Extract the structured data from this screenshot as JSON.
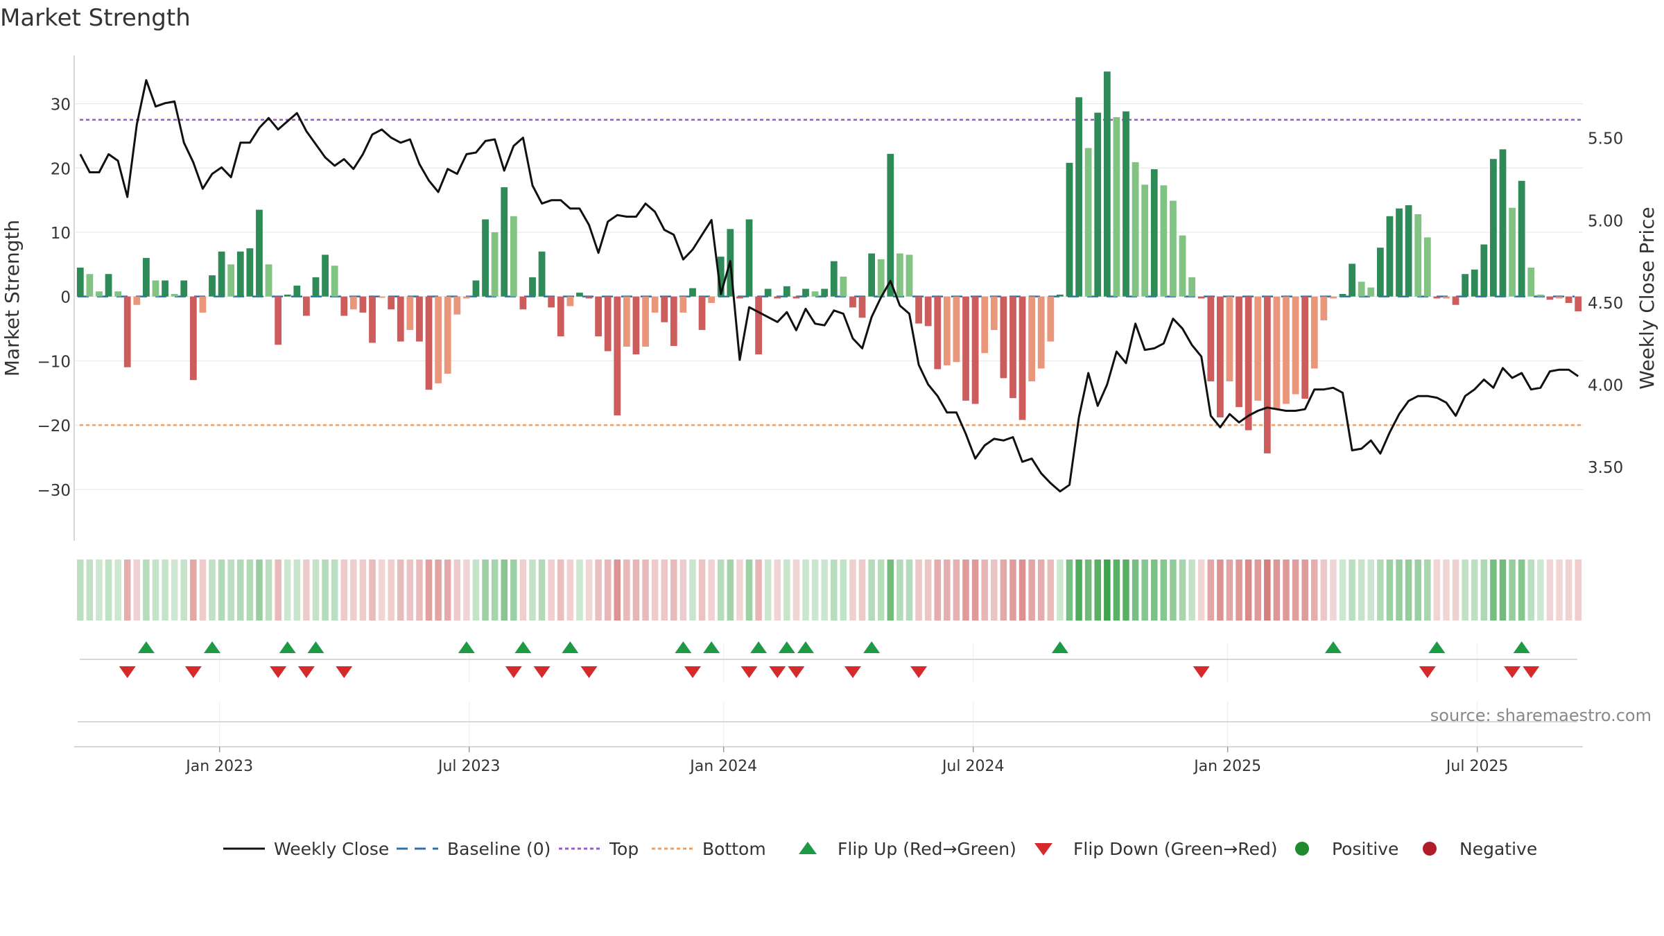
{
  "chart_data": {
    "type": "bar",
    "title": "Market Strength",
    "ylabel_left": "Market Strength",
    "ylabel_right": "Weekly Close Price",
    "source": "source: sharemaestro.com",
    "left_ylim": [
      -38,
      37.5
    ],
    "right_ylim": [
      3.05,
      6.0
    ],
    "left_ticks": [
      30,
      20,
      10,
      0,
      -10,
      -20,
      -30
    ],
    "left_tick_labels": [
      "30",
      "20",
      "10",
      "0",
      "−10",
      "−20",
      "−30"
    ],
    "right_ticks": [
      5.5,
      5.0,
      4.5,
      4.0,
      3.5
    ],
    "right_tick_labels": [
      "5.50",
      "5.00",
      "4.50",
      "4.00",
      "3.50"
    ],
    "top_line": 27.5,
    "bottom_line": -20,
    "baseline": 0,
    "x_week_range": [
      0,
      157
    ],
    "x_ticks": [
      15,
      41,
      67.5,
      93.5,
      120,
      146
    ],
    "x_tick_labels": [
      "Jan 2023",
      "Jul 2023",
      "Jan 2024",
      "Jul 2024",
      "Jan 2025",
      "Jul 2025"
    ],
    "strength": [
      4.5,
      3.5,
      0.8,
      3.5,
      0.8,
      -11,
      -1.3,
      6,
      2.5,
      2.5,
      0.4,
      2.5,
      -13,
      -2.5,
      3.3,
      7,
      5,
      7,
      7.5,
      13.5,
      5,
      -7.5,
      0.3,
      1.7,
      -3,
      3,
      6.5,
      4.8,
      -3,
      -2,
      -2.5,
      -7.2,
      -0.2,
      -2,
      -7,
      -5.2,
      -7,
      -14.5,
      -13.5,
      -12,
      -2.8,
      -0.3,
      2.5,
      12,
      10,
      17,
      12.5,
      -2,
      3,
      7,
      -1.7,
      -6.2,
      -1.5,
      0.6,
      -0.3,
      -6.2,
      -8.5,
      -18.5,
      -7.8,
      -9,
      -7.8,
      -2.5,
      -4,
      -7.7,
      -2.5,
      1.3,
      -5.2,
      -1,
      6.2,
      10.5,
      -0.3,
      12,
      -9,
      1.2,
      -0.3,
      1.6,
      -0.3,
      1.2,
      0.8,
      1.2,
      5.5,
      3.1,
      -1.7,
      -3.3,
      6.7,
      5.8,
      22.2,
      6.7,
      6.5,
      -4.2,
      -4.6,
      -11.3,
      -10.7,
      -10.2,
      -16.2,
      -16.7,
      -8.8,
      -5.2,
      -12.7,
      -15.8,
      -19.2,
      -13.2,
      -11.2,
      -7,
      0.3,
      20.8,
      31,
      23.1,
      28.6,
      35,
      27.9,
      28.8,
      20.9,
      17.4,
      19.8,
      17.3,
      14.9,
      9.5,
      3,
      -0.3,
      -13.2,
      -18.8,
      -13.2,
      -17.2,
      -20.8,
      -16.2,
      -24.4,
      -17.5,
      -16.7,
      -15.2,
      -15.9,
      -11.2,
      -3.7,
      -0.3,
      0.4,
      5.1,
      2.3,
      1.4,
      7.6,
      12.5,
      13.7,
      14.2,
      12.8,
      9.2,
      -0.3,
      -0.3,
      -1.3,
      3.5,
      4.2,
      8.1,
      21.4,
      22.9,
      13.8,
      18,
      4.5,
      0.3,
      -0.5,
      -0.3,
      -1,
      -2.3
    ],
    "close_price": [
      5.4,
      5.29,
      5.29,
      5.4,
      5.36,
      5.14,
      5.58,
      5.85,
      5.69,
      5.71,
      5.72,
      5.47,
      5.35,
      5.19,
      5.28,
      5.32,
      5.26,
      5.47,
      5.47,
      5.56,
      5.62,
      5.55,
      5.6,
      5.65,
      5.54,
      5.46,
      5.38,
      5.33,
      5.37,
      5.31,
      5.4,
      5.52,
      5.55,
      5.5,
      5.47,
      5.49,
      5.34,
      5.24,
      5.17,
      5.31,
      5.28,
      5.4,
      5.41,
      5.48,
      5.49,
      5.3,
      5.45,
      5.5,
      5.21,
      5.1,
      5.12,
      5.12,
      5.07,
      5.07,
      4.97,
      4.8,
      4.99,
      5.03,
      5.02,
      5.02,
      5.1,
      5.05,
      4.94,
      4.91,
      4.76,
      4.82,
      4.91,
      5.0,
      4.55,
      4.75,
      4.15,
      4.47,
      4.44,
      4.41,
      4.38,
      4.44,
      4.33,
      4.46,
      4.37,
      4.36,
      4.45,
      4.43,
      4.28,
      4.22,
      4.41,
      4.53,
      4.63,
      4.48,
      4.43,
      4.12,
      4.0,
      3.93,
      3.83,
      3.83,
      3.7,
      3.55,
      3.63,
      3.67,
      3.66,
      3.68,
      3.53,
      3.55,
      3.46,
      3.4,
      3.35,
      3.39,
      3.8,
      4.07,
      3.87,
      4.0,
      4.2,
      4.13,
      4.37,
      4.21,
      4.22,
      4.25,
      4.4,
      4.34,
      4.24,
      4.17,
      3.81,
      3.74,
      3.82,
      3.77,
      3.81,
      3.84,
      3.86,
      3.85,
      3.84,
      3.84,
      3.85,
      3.97,
      3.97,
      3.98,
      3.95,
      3.6,
      3.61,
      3.66,
      3.58,
      3.71,
      3.82,
      3.9,
      3.93,
      3.93,
      3.92,
      3.89,
      3.81,
      3.93,
      3.97,
      4.03,
      3.98,
      4.1,
      4.04,
      4.07,
      3.97,
      3.98,
      4.08,
      4.09,
      4.09,
      4.05
    ],
    "flip_up_weeks": [
      7,
      14,
      22,
      25,
      41,
      47,
      52,
      64,
      67,
      72,
      75,
      77,
      84,
      104,
      133,
      144,
      153
    ],
    "flip_down_weeks": [
      5,
      12,
      21,
      24,
      28,
      46,
      49,
      54,
      65,
      71,
      74,
      76,
      82,
      89,
      119,
      143,
      152,
      154
    ],
    "legend": [
      {
        "label": "Weekly Close",
        "type": "line-solid",
        "color": "#111111"
      },
      {
        "label": "Baseline (0)",
        "type": "line-dashed",
        "color": "#2f6fa8"
      },
      {
        "label": "Top",
        "type": "line-dotted",
        "color": "#9b59d0"
      },
      {
        "label": "Bottom",
        "type": "line-dotted",
        "color": "#f0a060"
      },
      {
        "label": "Flip Up (Red→Green)",
        "type": "triangle-up",
        "color": "#1e9a44"
      },
      {
        "label": "Flip Down (Green→Red)",
        "type": "triangle-down",
        "color": "#d62a2a"
      },
      {
        "label": "Positive",
        "type": "circle",
        "color": "#1f8a2e"
      },
      {
        "label": "Negative",
        "type": "circle",
        "color": "#b01e2a"
      }
    ],
    "colors": {
      "pos_strong": "#2e8b57",
      "pos_weak": "#82c282",
      "neg_strong": "#cd5c5c",
      "neg_weak": "#e9967a",
      "top": "#9b59d0",
      "bottom": "#f0a060",
      "baseline": "#2f6fa8",
      "price": "#111111",
      "flip_up": "#1e9a44",
      "flip_down": "#d62a2a"
    }
  }
}
